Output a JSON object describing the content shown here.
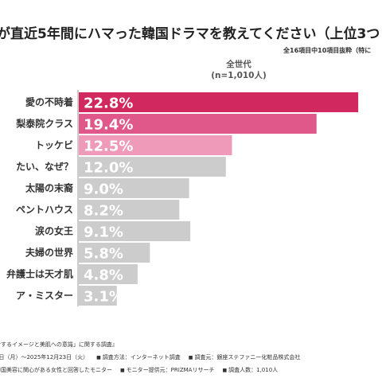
{
  "chart_data": {
    "type": "bar",
    "orientation": "horizontal",
    "title": "が直近5年間にハマった韓国ドラマを教えてください（上位3つ",
    "subtitle": "全16項目中10項目抜粋（特に",
    "series_label": "全世代",
    "sample_size": "(n=1,010人)",
    "categories": [
      "愛の不時着",
      "梨泰院クラス",
      "トッケビ",
      "たい、なぜ？",
      "太陽の末裔",
      "ペントハウス",
      "涙の女王",
      "夫婦の世界",
      "弁護士は天才肌",
      "ア・ミスター"
    ],
    "values": [
      22.8,
      19.4,
      12.5,
      12.0,
      9.0,
      8.2,
      9.1,
      5.8,
      4.8,
      3.1
    ],
    "value_labels": [
      "22.8%",
      "19.4%",
      "12.5%",
      "12.0%",
      "9.0%",
      "8.2%",
      "9.1%",
      "5.8%",
      "4.8%",
      "3.1%"
    ],
    "colors": [
      "#d1285f",
      "#e0588a",
      "#ef9ab8",
      "#cccccc",
      "#cccccc",
      "#cccccc",
      "#cccccc",
      "#cccccc",
      "#cccccc",
      "#cccccc"
    ],
    "xlim": [
      0,
      24
    ],
    "grid": false,
    "legend": "none"
  },
  "footer": {
    "lines": [
      [
        {
          "marker": "",
          "text": "対するイメージと美肌への意識」に関する調査』"
        }
      ],
      [
        {
          "marker": "",
          "text": "2日（月）〜2025年12月23日（火）"
        },
        {
          "marker": "■",
          "text": "調査方法：インターネット調査"
        },
        {
          "marker": "■",
          "text": "調査元：銀座ステファニー化粧品株式会社"
        }
      ],
      [
        {
          "marker": "",
          "text": "韓国美容に関心がある女性と回答したモニター"
        },
        {
          "marker": "■",
          "text": "モニター提供元：PRIZMAリサーチ"
        },
        {
          "marker": "■",
          "text": "調査人数：1,010人"
        }
      ]
    ]
  }
}
